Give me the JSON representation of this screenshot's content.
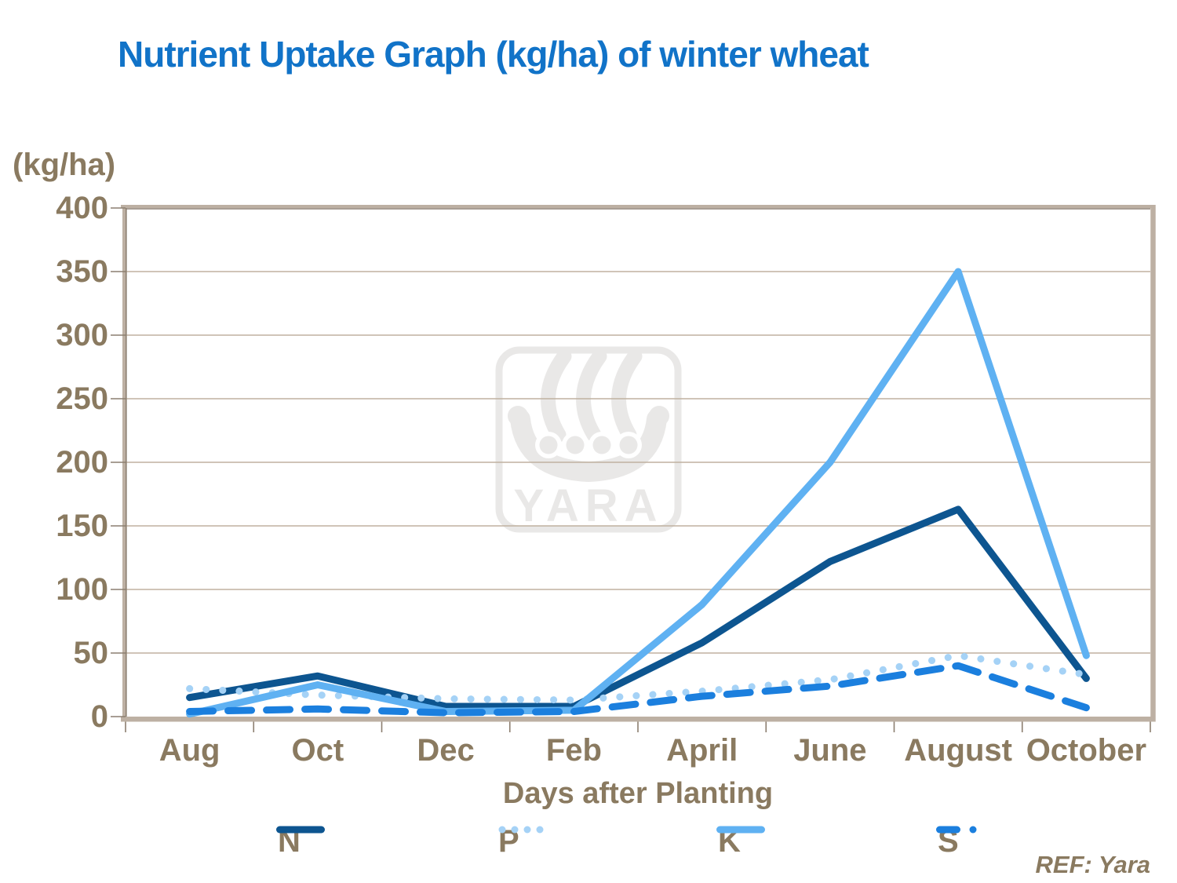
{
  "title": "Nutrient Uptake Graph (kg/ha) of winter wheat",
  "watermark": {
    "text": "YARA"
  },
  "footer": {
    "ref": "REF: Yara"
  },
  "colors": {
    "title": "#1173C8",
    "axis_text": "#8A7A60",
    "gridline": "#C0B1A0",
    "frame_light": "#BDB0A3",
    "frame_dark": "#8C7F70",
    "background": "#FFFFFF",
    "watermark": "#E9E8E7"
  },
  "chart_data": {
    "type": "line",
    "title": "Nutrient Uptake Graph (kg/ha) of winter wheat",
    "xlabel": "Days after Planting",
    "ylabel": "(kg/ha)",
    "ylim": [
      0,
      400
    ],
    "ytick_step": 50,
    "yticks": [
      400,
      350,
      300,
      250,
      200,
      150,
      100,
      50,
      0
    ],
    "grid": "horizontal",
    "legend_position": "bottom",
    "categories": [
      "Aug",
      "Oct",
      "Dec",
      "Feb",
      "April",
      "June",
      "August",
      "October"
    ],
    "series": [
      {
        "name": "N",
        "color": "#0D5590",
        "style": "solid",
        "values": [
          15,
          32,
          8,
          8,
          58,
          122,
          163,
          30
        ]
      },
      {
        "name": "P",
        "color": "#A5D2F6",
        "style": "dotted",
        "values": [
          22,
          17,
          14,
          13,
          20,
          29,
          48,
          33
        ]
      },
      {
        "name": "K",
        "color": "#5FB1F2",
        "style": "solid",
        "values": [
          2,
          25,
          4,
          5,
          88,
          200,
          350,
          48
        ]
      },
      {
        "name": "S",
        "color": "#1B7FDE",
        "style": "dashed",
        "values": [
          4,
          6,
          3,
          4,
          16,
          24,
          40,
          7
        ]
      }
    ]
  }
}
